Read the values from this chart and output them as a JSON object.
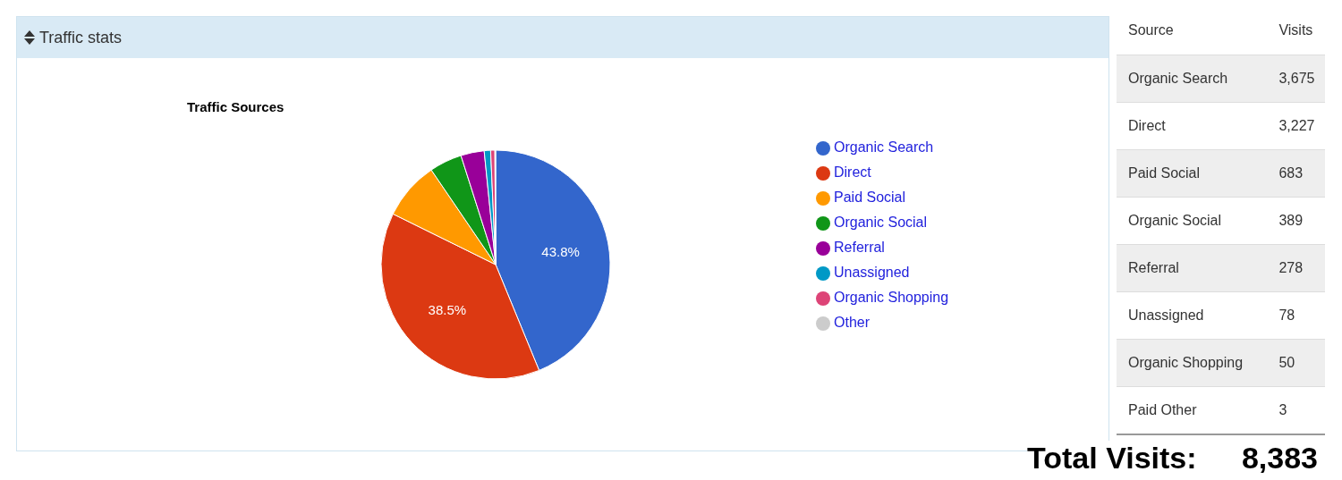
{
  "chart_data": [
    {
      "type": "pie",
      "title": "Traffic Sources",
      "annotations": [
        "Traffic stats"
      ],
      "categories": [
        "Organic Search",
        "Direct",
        "Paid Social",
        "Organic Social",
        "Referral",
        "Unassigned",
        "Organic Shopping",
        "Other"
      ],
      "values": [
        43.8,
        38.5,
        8.2,
        4.6,
        3.3,
        0.9,
        0.6,
        0.1
      ],
      "colors": [
        "#3366cc",
        "#dc3912",
        "#ff9900",
        "#109618",
        "#990099",
        "#0099c6",
        "#dd4477",
        "#cccccc"
      ],
      "value_labels": [
        "43.8%",
        "38.5%",
        null,
        null,
        null,
        null,
        null,
        null
      ],
      "legend": "right"
    },
    {
      "type": "other",
      "annotations": [
        "Source",
        "Visits",
        "Total Visits:",
        "8,383"
      ],
      "categories": [
        "Organic Search",
        "Direct",
        "Paid Social",
        "Organic Social",
        "Referral",
        "Unassigned",
        "Organic Shopping",
        "Paid Other"
      ],
      "values": [
        3675,
        3227,
        683,
        389,
        278,
        78,
        50,
        3
      ],
      "value_labels": [
        "3,675",
        "3,227",
        "683",
        "389",
        "278",
        "78",
        "50",
        "3"
      ]
    }
  ]
}
